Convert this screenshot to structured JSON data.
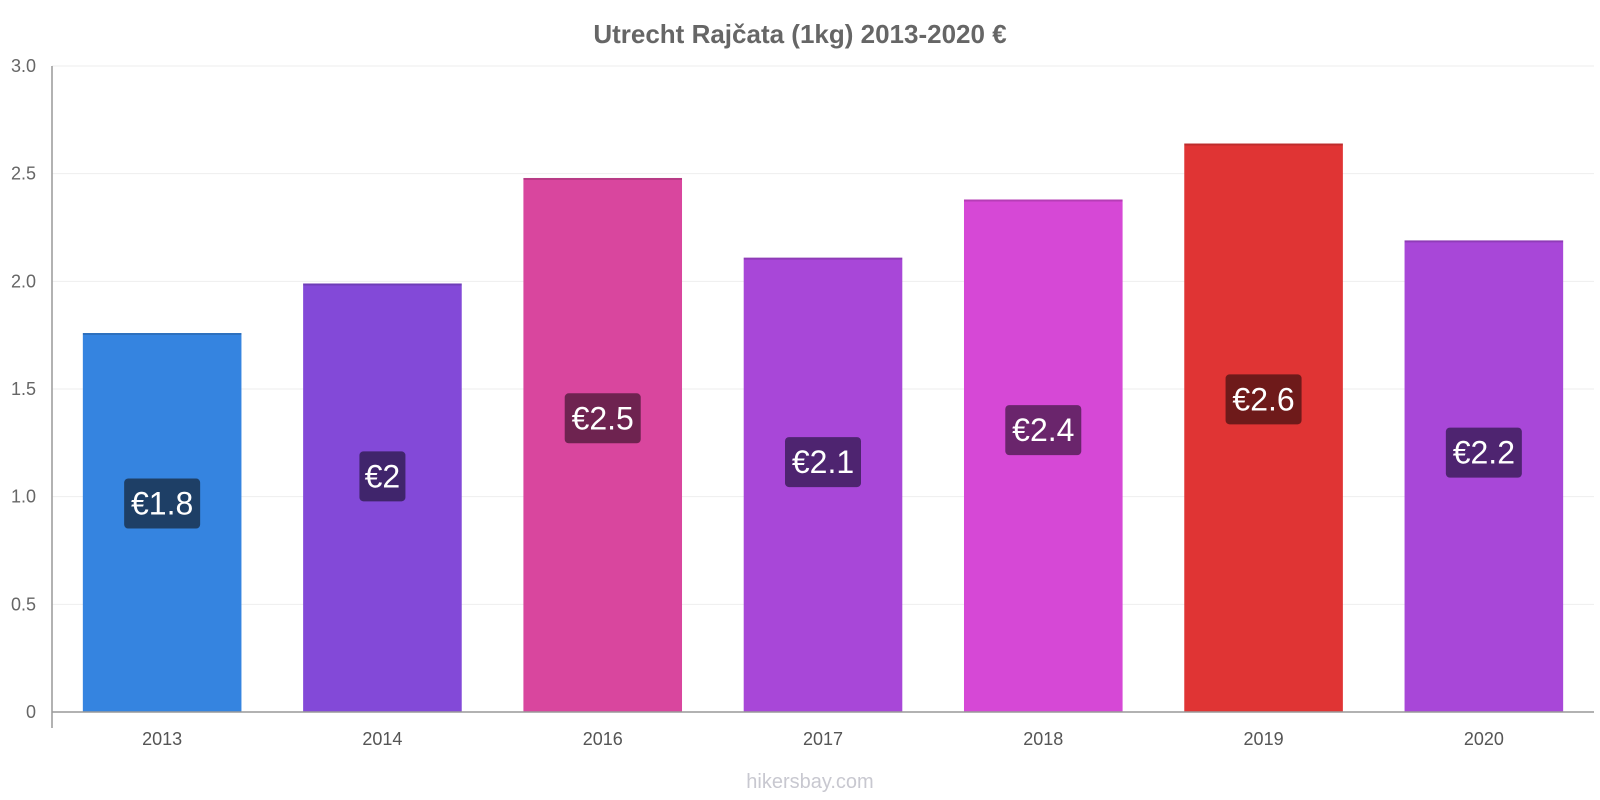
{
  "chart_data": {
    "type": "bar",
    "title": "Utrecht Rajčata (1kg) 2013-2020 €",
    "categories": [
      "2013",
      "2014",
      "2016",
      "2017",
      "2018",
      "2019",
      "2020"
    ],
    "values": [
      1.76,
      1.99,
      2.48,
      2.11,
      2.38,
      2.64,
      2.19
    ],
    "data_labels": [
      "€1.8",
      "€2",
      "€2.5",
      "€2.1",
      "€2.4",
      "€2.6",
      "€2.2"
    ],
    "colors": [
      "#3584e0",
      "#8349d8",
      "#d9469e",
      "#a847d8",
      "#d648d6",
      "#e03434",
      "#a847d8"
    ],
    "label_colors": [
      "#1e3f66",
      "#40256c",
      "#6e2350",
      "#4e2470",
      "#6a256c",
      "#6e1a1a",
      "#4e2470"
    ],
    "y_ticks": [
      "0",
      "0.5",
      "1.0",
      "1.5",
      "2.0",
      "2.5",
      "3.0"
    ],
    "ylim": [
      0,
      3.0
    ],
    "xlabel": "",
    "ylabel": "",
    "grid": true,
    "watermark": "hikersbay.com"
  }
}
